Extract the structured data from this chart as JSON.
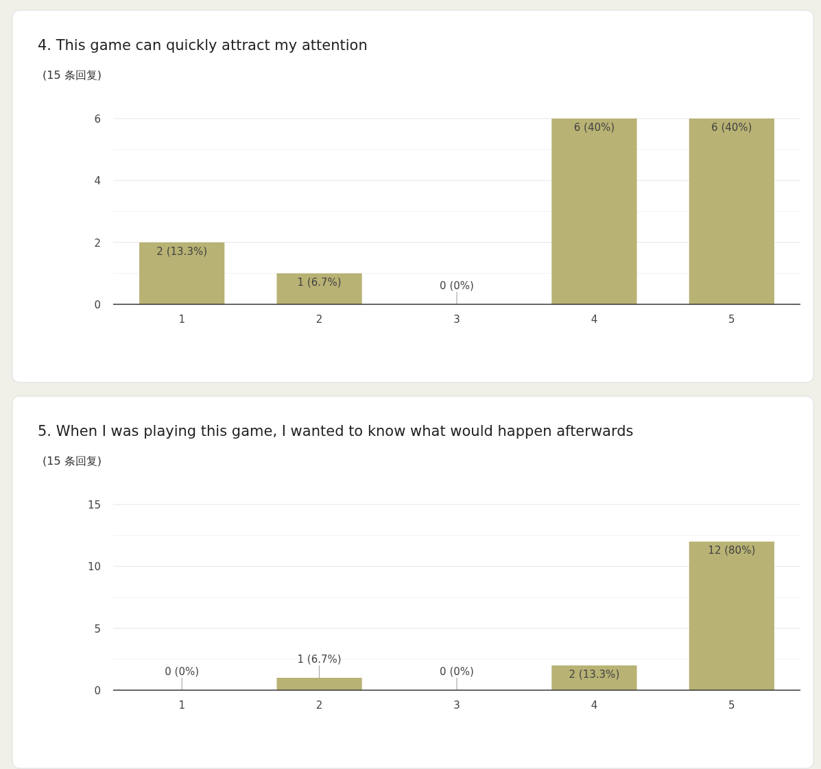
{
  "chart_data": [
    {
      "type": "bar",
      "title": "4. This game can quickly attract my attention",
      "subtitle": "(15 条回复)",
      "categories": [
        "1",
        "2",
        "3",
        "4",
        "5"
      ],
      "values": [
        2,
        1,
        0,
        6,
        6
      ],
      "value_labels": [
        "2 (13.3%)",
        "1 (6.7%)",
        "0 (0%)",
        "6 (40%)",
        "6 (40%)"
      ],
      "color": "#b8b274",
      "ylim": [
        0,
        6
      ],
      "yticks": [
        0,
        {
          "value": 1,
          "label": null
        },
        2,
        {
          "value": 3,
          "label": null
        },
        4,
        {
          "value": 5,
          "label": null
        },
        6
      ],
      "grid": true
    },
    {
      "type": "bar",
      "title": "5. When I was playing this game, I wanted to know what would happen afterwards",
      "subtitle": "(15 条回复)",
      "categories": [
        "1",
        "2",
        "3",
        "4",
        "5"
      ],
      "values": [
        0,
        1,
        0,
        2,
        12
      ],
      "value_labels": [
        "0 (0%)",
        "1 (6.7%)",
        "0 (0%)",
        "2 (13.3%)",
        "12 (80%)"
      ],
      "color": "#b8b274",
      "ylim": [
        0,
        15
      ],
      "yticks": [
        0,
        {
          "value": 2.5,
          "label": null
        },
        5,
        {
          "value": 7.5,
          "label": null
        },
        10,
        {
          "value": 12.5,
          "label": null
        },
        15
      ],
      "grid": true
    }
  ]
}
